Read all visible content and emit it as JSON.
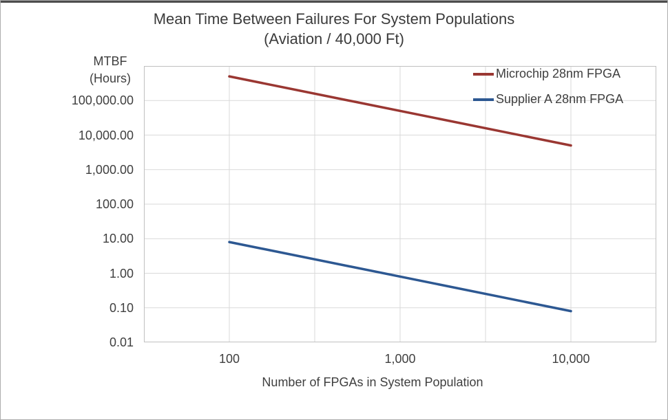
{
  "window": {
    "background": "#ffffff",
    "top_edge_color": "#4d4d4d",
    "outer_border_color": "#adadad"
  },
  "chart_data": {
    "type": "line",
    "title": "Mean Time Between Failures For System Populations",
    "subtitle": "(Aviation / 40,000 Ft)",
    "ylabel_line1": "MTBF",
    "ylabel_line2": "(Hours)",
    "xlabel": "Number of FPGAs in System Population",
    "x_scale": "log",
    "y_scale": "log",
    "x_range": [
      31.623,
      31623
    ],
    "y_range": [
      0.01,
      1000000
    ],
    "x_grid_step_log": 0.5,
    "y_grid_step_log": 1,
    "grid_on": true,
    "grid_color": "#d9d9d9",
    "plot_border_color": "#c0c0c0",
    "axis_text_color": "#3f3f3f",
    "legend_position": "top-right-inside",
    "x_ticks": [
      {
        "label": "100",
        "value": 100
      },
      {
        "label": "1,000",
        "value": 1000
      },
      {
        "label": "10,000",
        "value": 10000
      }
    ],
    "y_ticks": [
      {
        "label": "100,000.00",
        "value": 100000
      },
      {
        "label": "10,000.00",
        "value": 10000
      },
      {
        "label": "1,000.00",
        "value": 1000
      },
      {
        "label": "100.00",
        "value": 100
      },
      {
        "label": "10.00",
        "value": 10
      },
      {
        "label": "1.00",
        "value": 1
      },
      {
        "label": "0.10",
        "value": 0.1
      },
      {
        "label": "0.01",
        "value": 0.01
      }
    ],
    "series": [
      {
        "name": "Microchip 28nm FPGA",
        "color": "#9a3732",
        "points": [
          [
            100,
            500000
          ],
          [
            10000,
            5000
          ]
        ]
      },
      {
        "name": "Supplier A 28nm FPGA",
        "color": "#2d5892",
        "points": [
          [
            100,
            8
          ],
          [
            10000,
            0.08
          ]
        ]
      }
    ]
  }
}
